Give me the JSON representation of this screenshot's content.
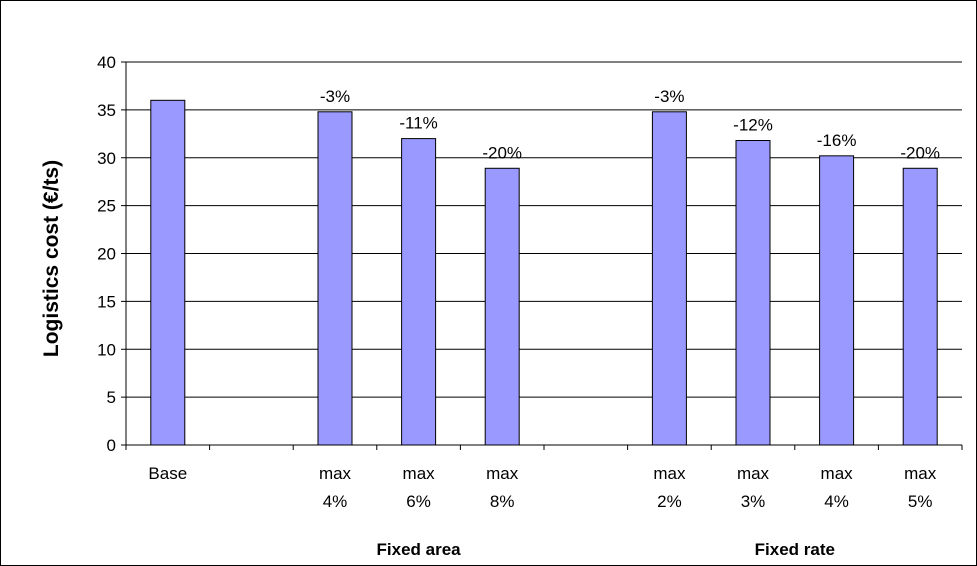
{
  "chart_data": {
    "type": "bar",
    "ylabel": "Logistics cost (€/ts)",
    "ylim": [
      0,
      40
    ],
    "yticks": [
      0,
      5,
      10,
      15,
      20,
      25,
      30,
      35,
      40
    ],
    "grid": true,
    "colors": {
      "bar_fill": "#9999ff",
      "bar_stroke": "#000000"
    },
    "slots": [
      {
        "line1": "Base",
        "line2": "",
        "value": 36.0,
        "label": ""
      },
      {
        "line1": "",
        "line2": "",
        "value": null,
        "label": ""
      },
      {
        "line1": "max",
        "line2": "4%",
        "value": 34.8,
        "label": "-3%"
      },
      {
        "line1": "max",
        "line2": "6%",
        "value": 32.0,
        "label": "-11%"
      },
      {
        "line1": "max",
        "line2": "8%",
        "value": 28.9,
        "label": "-20%"
      },
      {
        "line1": "",
        "line2": "",
        "value": null,
        "label": ""
      },
      {
        "line1": "max",
        "line2": "2%",
        "value": 34.8,
        "label": "-3%"
      },
      {
        "line1": "max",
        "line2": "3%",
        "value": 31.8,
        "label": "-12%"
      },
      {
        "line1": "max",
        "line2": "4%",
        "value": 30.2,
        "label": "-16%"
      },
      {
        "line1": "max",
        "line2": "5%",
        "value": 28.9,
        "label": "-20%"
      }
    ],
    "groups": [
      {
        "label": "Fixed area",
        "slots": [
          2,
          4
        ]
      },
      {
        "label": "Fixed rate",
        "slots": [
          6,
          9
        ]
      }
    ]
  }
}
